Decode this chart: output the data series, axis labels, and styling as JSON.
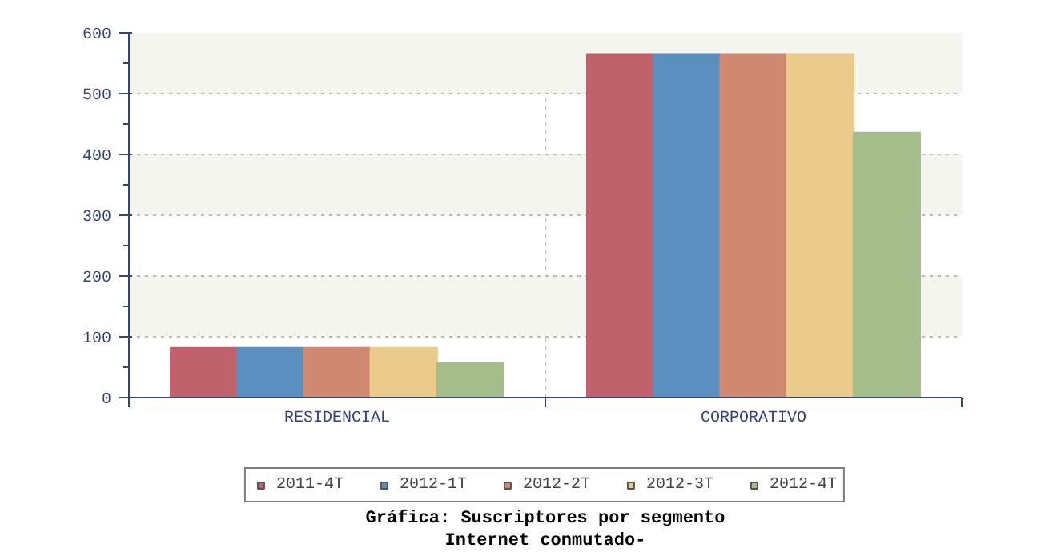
{
  "chart_data": {
    "type": "bar",
    "title": "Gráfica: Suscriptores por segmento",
    "subtitle": "Internet conmutado-",
    "categories": [
      "RESIDENCIAL",
      "CORPORATIVO"
    ],
    "series": [
      {
        "name": "2011-4T",
        "color": "#c0626b",
        "values": [
          82,
          565
        ]
      },
      {
        "name": "2012-1T",
        "color": "#5b8fbf",
        "values": [
          82,
          565
        ]
      },
      {
        "name": "2012-2T",
        "color": "#d08870",
        "values": [
          82,
          565
        ]
      },
      {
        "name": "2012-3T",
        "color": "#eacb8b",
        "values": [
          82,
          565
        ]
      },
      {
        "name": "2012-4T",
        "color": "#a4bd8b",
        "values": [
          57,
          436
        ]
      }
    ],
    "ylim": [
      0,
      600
    ],
    "yticks": [
      0,
      100,
      200,
      300,
      400,
      500,
      600
    ],
    "grid": true,
    "legend": "bottom"
  }
}
